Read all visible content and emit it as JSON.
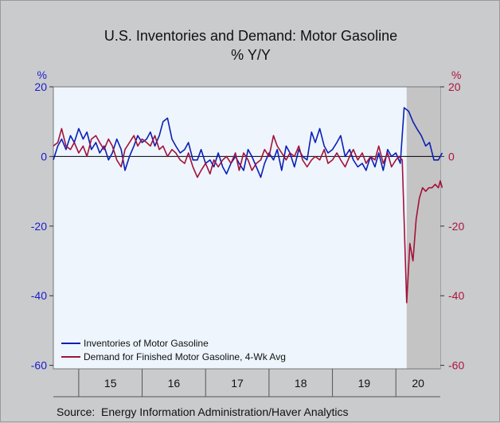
{
  "chart_data": {
    "type": "line",
    "title": "U.S. Inventories and Demand: Motor Gasoline",
    "subtitle": "% Y/Y",
    "left_axis_unit": "%",
    "right_axis_unit": "%",
    "x_categories": [
      "15",
      "16",
      "17",
      "18",
      "19",
      "20"
    ],
    "x_range": [
      2014.6,
      2020.7
    ],
    "ylim": [
      -61,
      20
    ],
    "left_ticks": [
      20,
      0,
      -20,
      -40,
      -60
    ],
    "right_ticks": [
      20,
      0,
      -20,
      -40,
      -60
    ],
    "shaded_region": [
      2020.17,
      2020.75
    ],
    "zero_line": true,
    "legend_position": "bottom-left",
    "source": "Source:  Energy Information Administration/Haver Analytics",
    "colors": {
      "plot_background": "#eef5fd",
      "frame_background": "#c9cbcd",
      "shade": "#c4c4c4",
      "left_axis": "#1c1ccc",
      "right_axis": "#b0143e"
    },
    "series": [
      {
        "name": "Inventories of Motor Gasoline",
        "color": "#0b1fb5",
        "axis": "left",
        "x": [
          2014.6,
          2014.67,
          2014.73,
          2014.8,
          2014.87,
          2014.93,
          2015.0,
          2015.07,
          2015.13,
          2015.2,
          2015.27,
          2015.33,
          2015.4,
          2015.47,
          2015.53,
          2015.6,
          2015.67,
          2015.73,
          2015.8,
          2015.87,
          2015.93,
          2016.0,
          2016.07,
          2016.13,
          2016.2,
          2016.27,
          2016.33,
          2016.4,
          2016.47,
          2016.53,
          2016.6,
          2016.67,
          2016.73,
          2016.8,
          2016.87,
          2016.93,
          2017.0,
          2017.07,
          2017.13,
          2017.2,
          2017.27,
          2017.33,
          2017.4,
          2017.47,
          2017.53,
          2017.6,
          2017.67,
          2017.73,
          2017.8,
          2017.87,
          2017.93,
          2018.0,
          2018.07,
          2018.13,
          2018.2,
          2018.27,
          2018.33,
          2018.4,
          2018.47,
          2018.53,
          2018.6,
          2018.67,
          2018.73,
          2018.8,
          2018.87,
          2018.93,
          2019.0,
          2019.07,
          2019.13,
          2019.2,
          2019.27,
          2019.33,
          2019.4,
          2019.47,
          2019.53,
          2019.6,
          2019.67,
          2019.73,
          2019.8,
          2019.87,
          2019.93,
          2020.0,
          2020.07,
          2020.13,
          2020.2,
          2020.27,
          2020.33,
          2020.4,
          2020.47,
          2020.53,
          2020.6,
          2020.67,
          2020.73
        ],
        "values": [
          -1,
          3,
          5,
          2,
          6,
          4,
          8,
          5,
          7,
          2,
          4,
          1,
          3,
          -1,
          1,
          5,
          2,
          -4,
          0,
          3,
          6,
          4,
          5,
          7,
          3,
          6,
          10,
          11,
          5,
          3,
          1,
          2,
          4,
          -1,
          -1,
          2,
          -2,
          -1,
          -3,
          1,
          -3,
          -5,
          -2,
          0,
          -2,
          -4,
          2,
          0,
          -3,
          -6,
          -2,
          1,
          -1,
          2,
          -4,
          3,
          1,
          -3,
          2,
          0,
          -1,
          7,
          4,
          8,
          3,
          1,
          2,
          4,
          6,
          0,
          2,
          -1,
          -3,
          -2,
          -4,
          0,
          -3,
          1,
          -4,
          2,
          0,
          1,
          -2,
          14,
          13,
          10,
          8,
          6,
          3,
          4,
          -1,
          -1,
          1
        ]
      },
      {
        "name": "Demand for Finished Motor Gasoline, 4-Wk Avg",
        "color": "#a3123a",
        "axis": "right",
        "x": [
          2014.6,
          2014.67,
          2014.73,
          2014.8,
          2014.87,
          2014.93,
          2015.0,
          2015.07,
          2015.13,
          2015.2,
          2015.27,
          2015.33,
          2015.4,
          2015.47,
          2015.53,
          2015.6,
          2015.67,
          2015.73,
          2015.8,
          2015.87,
          2015.93,
          2016.0,
          2016.07,
          2016.13,
          2016.2,
          2016.27,
          2016.33,
          2016.4,
          2016.47,
          2016.53,
          2016.6,
          2016.67,
          2016.73,
          2016.8,
          2016.87,
          2016.93,
          2017.0,
          2017.07,
          2017.13,
          2017.2,
          2017.27,
          2017.33,
          2017.4,
          2017.47,
          2017.53,
          2017.6,
          2017.67,
          2017.73,
          2017.8,
          2017.87,
          2017.93,
          2018.0,
          2018.07,
          2018.13,
          2018.2,
          2018.27,
          2018.33,
          2018.4,
          2018.47,
          2018.53,
          2018.6,
          2018.67,
          2018.73,
          2018.8,
          2018.87,
          2018.93,
          2019.0,
          2019.07,
          2019.13,
          2019.2,
          2019.27,
          2019.33,
          2019.4,
          2019.47,
          2019.53,
          2019.6,
          2019.67,
          2019.73,
          2019.8,
          2019.87,
          2019.93,
          2020.0,
          2020.05,
          2020.1,
          2020.17,
          2020.22,
          2020.27,
          2020.32,
          2020.37,
          2020.42,
          2020.47,
          2020.52,
          2020.57,
          2020.62,
          2020.67,
          2020.7,
          2020.73
        ],
        "values": [
          3,
          4,
          8,
          3,
          2,
          4,
          1,
          3,
          0,
          5,
          6,
          4,
          2,
          5,
          3,
          -1,
          -3,
          2,
          4,
          6,
          3,
          5,
          4,
          3,
          6,
          2,
          3,
          0,
          2,
          1,
          -1,
          -2,
          1,
          -3,
          -6,
          -4,
          -2,
          -5,
          -1,
          -3,
          -1,
          0,
          -2,
          1,
          -4,
          1,
          -1,
          -4,
          -2,
          -1,
          2,
          0,
          6,
          3,
          1,
          -1,
          1,
          0,
          3,
          -1,
          -3,
          -1,
          0,
          -1,
          2,
          -2,
          -1,
          1,
          -1,
          -3,
          0,
          2,
          -1,
          1,
          -2,
          0,
          -1,
          3,
          -2,
          1,
          -3,
          -1,
          0,
          -1,
          -42,
          -25,
          -30,
          -18,
          -12,
          -9,
          -10,
          -9,
          -9,
          -8,
          -9,
          -7,
          -9
        ]
      }
    ]
  }
}
